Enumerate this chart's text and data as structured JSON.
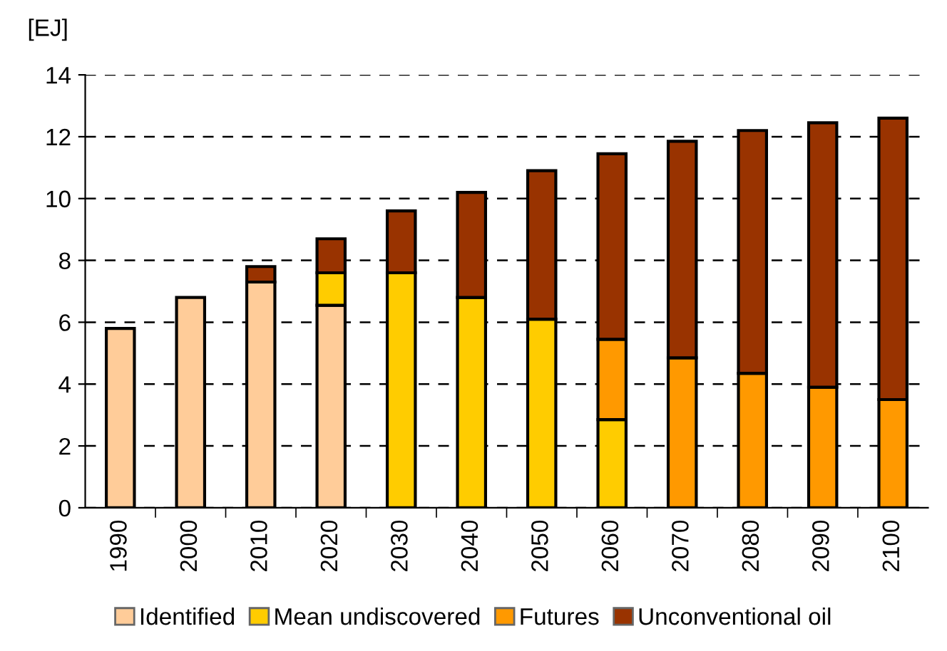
{
  "chart_data": {
    "type": "bar",
    "stacked": true,
    "ylabel": "[EJ]",
    "categories": [
      "1990",
      "2000",
      "2010",
      "2020",
      "2030",
      "2040",
      "2050",
      "2060",
      "2070",
      "2080",
      "2090",
      "2100"
    ],
    "series": [
      {
        "name": "Identified",
        "color": "#ffcc99",
        "values": [
          5.8,
          6.8,
          7.3,
          6.55,
          null,
          null,
          null,
          null,
          null,
          null,
          null,
          null
        ]
      },
      {
        "name": "Mean undiscovered",
        "color": "#ffcc00",
        "values": [
          null,
          null,
          null,
          1.05,
          7.6,
          6.8,
          6.1,
          2.85,
          null,
          null,
          null,
          null
        ]
      },
      {
        "name": "Futures",
        "color": "#ff9900",
        "values": [
          null,
          null,
          null,
          null,
          null,
          null,
          null,
          2.6,
          4.85,
          4.35,
          3.9,
          3.5
        ]
      },
      {
        "name": "Unconventional oil",
        "color": "#993300",
        "values": [
          null,
          null,
          0.5,
          1.1,
          2.0,
          3.4,
          4.8,
          6.0,
          7.0,
          7.85,
          8.55,
          9.1
        ]
      }
    ],
    "ylim": [
      0,
      14
    ],
    "yticks": [
      0,
      2,
      4,
      6,
      8,
      10,
      12,
      14
    ],
    "grid": "y",
    "legend": "bottom"
  }
}
